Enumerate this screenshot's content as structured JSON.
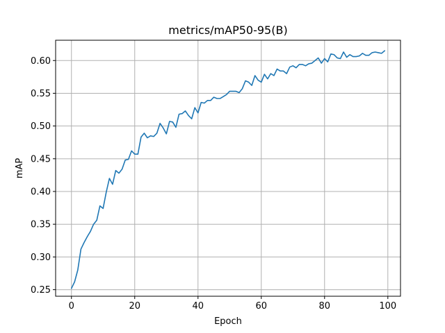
{
  "chart_data": {
    "type": "line",
    "title": "metrics/mAP50-95(B)",
    "xlabel": "Epoch",
    "ylabel": "mAP",
    "xlim": [
      -5,
      104
    ],
    "ylim": [
      0.24,
      0.631
    ],
    "x_ticks": [
      0,
      20,
      40,
      60,
      80,
      100
    ],
    "y_ticks": [
      0.25,
      0.3,
      0.35,
      0.4,
      0.45,
      0.5,
      0.55,
      0.6
    ],
    "x_tick_labels": [
      "0",
      "20",
      "40",
      "60",
      "80",
      "100"
    ],
    "y_tick_labels": [
      "0.25",
      "0.30",
      "0.35",
      "0.40",
      "0.45",
      "0.50",
      "0.55",
      "0.60"
    ],
    "grid": true,
    "line_color": "#1f77b4",
    "x": [
      0,
      1,
      2,
      3,
      4,
      5,
      6,
      7,
      8,
      9,
      10,
      11,
      12,
      13,
      14,
      15,
      16,
      17,
      18,
      19,
      20,
      21,
      22,
      23,
      24,
      25,
      26,
      27,
      28,
      29,
      30,
      31,
      32,
      33,
      34,
      35,
      36,
      37,
      38,
      39,
      40,
      41,
      42,
      43,
      44,
      45,
      46,
      47,
      48,
      49,
      50,
      51,
      52,
      53,
      54,
      55,
      56,
      57,
      58,
      59,
      60,
      61,
      62,
      63,
      64,
      65,
      66,
      67,
      68,
      69,
      70,
      71,
      72,
      73,
      74,
      75,
      76,
      77,
      78,
      79,
      80,
      81,
      82,
      83,
      84,
      85,
      86,
      87,
      88,
      89,
      90,
      91,
      92,
      93,
      94,
      95,
      96,
      97,
      98,
      99
    ],
    "y": [
      0.252,
      0.262,
      0.28,
      0.312,
      0.322,
      0.331,
      0.339,
      0.35,
      0.356,
      0.378,
      0.374,
      0.399,
      0.42,
      0.411,
      0.432,
      0.428,
      0.434,
      0.448,
      0.449,
      0.462,
      0.457,
      0.457,
      0.483,
      0.489,
      0.482,
      0.485,
      0.484,
      0.489,
      0.504,
      0.497,
      0.488,
      0.507,
      0.506,
      0.498,
      0.518,
      0.519,
      0.523,
      0.516,
      0.511,
      0.528,
      0.52,
      0.536,
      0.535,
      0.539,
      0.539,
      0.544,
      0.542,
      0.542,
      0.545,
      0.548,
      0.553,
      0.553,
      0.553,
      0.551,
      0.557,
      0.569,
      0.567,
      0.562,
      0.577,
      0.57,
      0.567,
      0.579,
      0.572,
      0.58,
      0.577,
      0.587,
      0.584,
      0.584,
      0.58,
      0.59,
      0.592,
      0.589,
      0.594,
      0.594,
      0.592,
      0.595,
      0.596,
      0.6,
      0.604,
      0.596,
      0.603,
      0.598,
      0.61,
      0.609,
      0.604,
      0.603,
      0.613,
      0.605,
      0.609,
      0.606,
      0.606,
      0.607,
      0.611,
      0.608,
      0.608,
      0.612,
      0.613,
      0.612,
      0.611,
      0.615
    ]
  }
}
